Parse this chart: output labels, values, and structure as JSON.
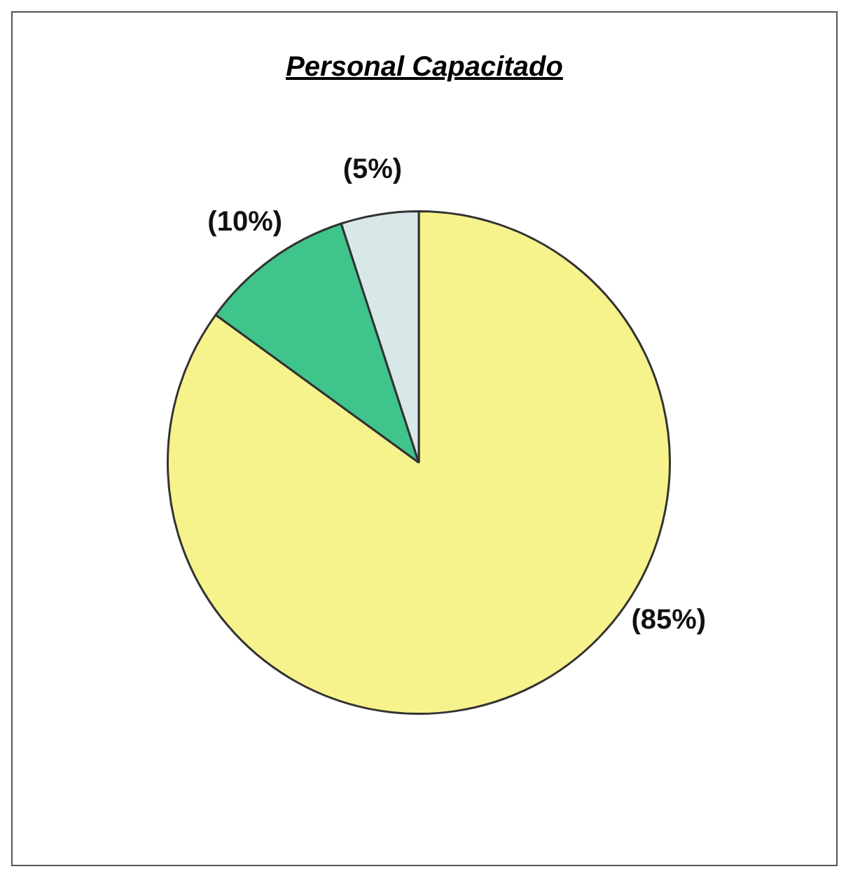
{
  "chart_data": {
    "type": "pie",
    "title": "Personal Capacitado",
    "categories": [
      null,
      null,
      null
    ],
    "values": [
      85,
      10,
      5
    ],
    "colors": [
      "#f7f38c",
      "#3fc48c",
      "#d8e8e8"
    ],
    "value_labels": [
      "(85%)",
      "(10%)",
      "(5%)"
    ],
    "legend": false
  }
}
